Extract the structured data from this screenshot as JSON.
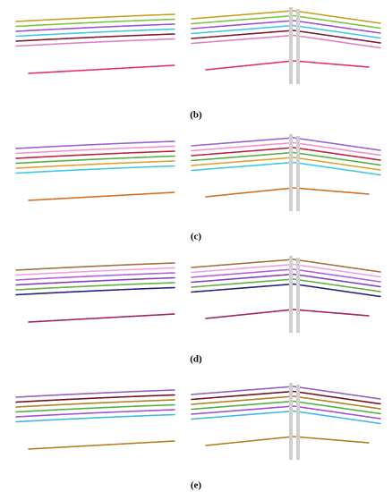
{
  "panels": [
    {
      "label": "(b)"
    },
    {
      "label": "(c)"
    },
    {
      "label": "(d)"
    },
    {
      "label": "(e)"
    }
  ]
}
